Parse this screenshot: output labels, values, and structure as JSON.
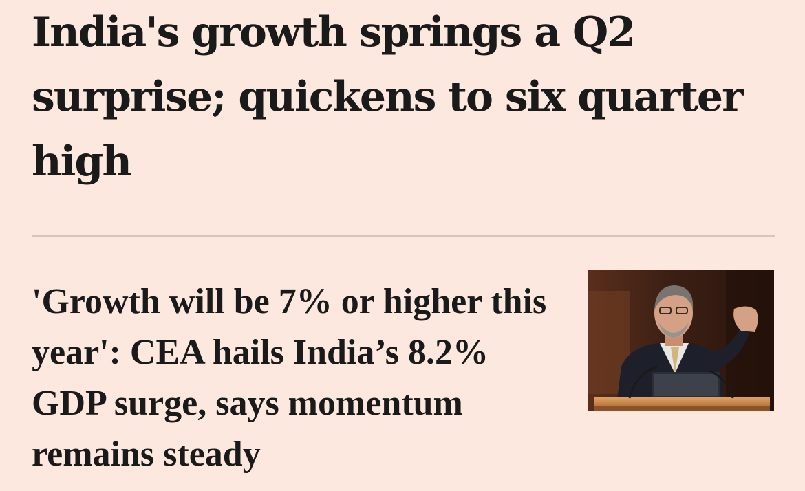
{
  "article": {
    "headline": "India's growth springs a Q2 surprise; quickens to six quarter high"
  },
  "related_story": {
    "title": "'Growth will be 7% or higher this year': CEA hails India’s 8.2% GDP surge, says momentum remains steady"
  },
  "colors": {
    "background": "#fde8e0",
    "text": "#1a1a1a",
    "divider": "#d9c3bb"
  }
}
